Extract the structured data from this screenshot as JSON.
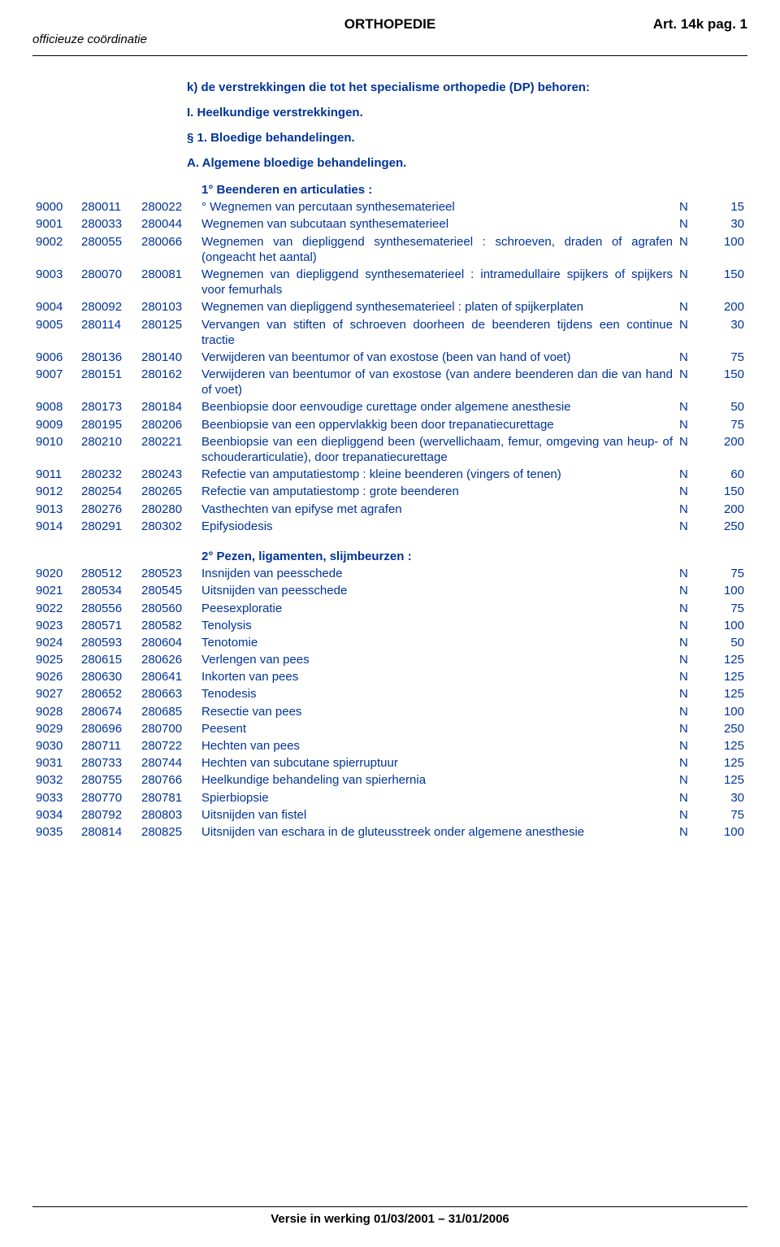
{
  "header": {
    "subtitle": "officieuze coördinatie",
    "center": "ORTHOPEDIE",
    "right": "Art. 14k pag. 1"
  },
  "intro": {
    "line1": "k) de verstrekkingen die tot het specialisme orthopedie (DP) behoren:",
    "line2": "I. Heelkundige verstrekkingen.",
    "line3": "§ 1. Bloedige behandelingen.",
    "line4": "A. Algemene bloedige behandelingen."
  },
  "sections": [
    {
      "title": "1° Beenderen en articulaties :",
      "rows": [
        {
          "c0": "9000",
          "c1": "280011",
          "c2": "280022",
          "desc": "° Wegnemen van percutaan synthesematerieel",
          "mark": "N",
          "val": "15"
        },
        {
          "c0": "9001",
          "c1": "280033",
          "c2": "280044",
          "desc": "Wegnemen van subcutaan synthesematerieel",
          "mark": "N",
          "val": "30"
        },
        {
          "c0": "9002",
          "c1": "280055",
          "c2": "280066",
          "desc": "Wegnemen van diepliggend synthesematerieel : schroeven, draden of agrafen (ongeacht het aantal)",
          "mark": "N",
          "val": "100"
        },
        {
          "c0": "9003",
          "c1": "280070",
          "c2": "280081",
          "desc": "Wegnemen van diepliggend synthesematerieel : intramedullaire spijkers of spijkers voor femurhals",
          "mark": "N",
          "val": "150"
        },
        {
          "c0": "9004",
          "c1": "280092",
          "c2": "280103",
          "desc": "Wegnemen van diepliggend synthesematerieel : platen of spijkerplaten",
          "mark": "N",
          "val": "200"
        },
        {
          "c0": "9005",
          "c1": "280114",
          "c2": "280125",
          "desc": "Vervangen van stiften of schroeven doorheen de beenderen tijdens een continue tractie",
          "mark": "N",
          "val": "30"
        },
        {
          "c0": "9006",
          "c1": "280136",
          "c2": "280140",
          "desc": "Verwijderen van beentumor of van exostose (been van hand of voet)",
          "mark": "N",
          "val": "75"
        },
        {
          "c0": "9007",
          "c1": "280151",
          "c2": "280162",
          "desc": "Verwijderen van beentumor of van exostose (van andere beenderen dan die van hand of voet)",
          "mark": "N",
          "val": "150"
        },
        {
          "c0": "9008",
          "c1": "280173",
          "c2": "280184",
          "desc": "Beenbiopsie door eenvoudige curettage onder algemene anesthesie",
          "mark": "N",
          "val": "50"
        },
        {
          "c0": "9009",
          "c1": "280195",
          "c2": "280206",
          "desc": "Beenbiopsie van een oppervlakkig been door trepanatiecurettage",
          "mark": "N",
          "val": "75"
        },
        {
          "c0": "9010",
          "c1": "280210",
          "c2": "280221",
          "desc": "Beenbiopsie van een diepliggend been (wervellichaam, femur, omgeving van heup- of schouderarticulatie), door trepanatiecurettage",
          "mark": "N",
          "val": "200"
        },
        {
          "c0": "9011",
          "c1": "280232",
          "c2": "280243",
          "desc": "Refectie van amputatiestomp : kleine beenderen (vingers of tenen)",
          "mark": "N",
          "val": "60"
        },
        {
          "c0": "9012",
          "c1": "280254",
          "c2": "280265",
          "desc": "Refectie van amputatiestomp : grote beenderen",
          "mark": "N",
          "val": "150"
        },
        {
          "c0": "9013",
          "c1": "280276",
          "c2": "280280",
          "desc": "Vasthechten van epifyse met agrafen",
          "mark": "N",
          "val": "200"
        },
        {
          "c0": "9014",
          "c1": "280291",
          "c2": "280302",
          "desc": "Epifysiodesis",
          "mark": "N",
          "val": "250"
        }
      ]
    },
    {
      "title": "2° Pezen, ligamenten, slijmbeurzen :",
      "rows": [
        {
          "c0": "9020",
          "c1": "280512",
          "c2": "280523",
          "desc": "Insnijden van peesschede",
          "mark": "N",
          "val": "75"
        },
        {
          "c0": "9021",
          "c1": "280534",
          "c2": "280545",
          "desc": "Uitsnijden van peesschede",
          "mark": "N",
          "val": "100"
        },
        {
          "c0": "9022",
          "c1": "280556",
          "c2": "280560",
          "desc": "Peesexploratie",
          "mark": "N",
          "val": "75"
        },
        {
          "c0": "9023",
          "c1": "280571",
          "c2": "280582",
          "desc": "Tenolysis",
          "mark": "N",
          "val": "100"
        },
        {
          "c0": "9024",
          "c1": "280593",
          "c2": "280604",
          "desc": "Tenotomie",
          "mark": "N",
          "val": "50"
        },
        {
          "c0": "9025",
          "c1": "280615",
          "c2": "280626",
          "desc": "Verlengen van pees",
          "mark": "N",
          "val": "125"
        },
        {
          "c0": "9026",
          "c1": "280630",
          "c2": "280641",
          "desc": "Inkorten van pees",
          "mark": "N",
          "val": "125"
        },
        {
          "c0": "9027",
          "c1": "280652",
          "c2": "280663",
          "desc": "Tenodesis",
          "mark": "N",
          "val": "125"
        },
        {
          "c0": "9028",
          "c1": "280674",
          "c2": "280685",
          "desc": "Resectie van pees",
          "mark": "N",
          "val": "100"
        },
        {
          "c0": "9029",
          "c1": "280696",
          "c2": "280700",
          "desc": "Peesent",
          "mark": "N",
          "val": "250"
        },
        {
          "c0": "9030",
          "c1": "280711",
          "c2": "280722",
          "desc": "Hechten van pees",
          "mark": "N",
          "val": "125"
        },
        {
          "c0": "9031",
          "c1": "280733",
          "c2": "280744",
          "desc": "Hechten van subcutane spierruptuur",
          "mark": "N",
          "val": "125"
        },
        {
          "c0": "9032",
          "c1": "280755",
          "c2": "280766",
          "desc": "Heelkundige behandeling van spierhernia",
          "mark": "N",
          "val": "125"
        },
        {
          "c0": "9033",
          "c1": "280770",
          "c2": "280781",
          "desc": "Spierbiopsie",
          "mark": "N",
          "val": "30"
        },
        {
          "c0": "9034",
          "c1": "280792",
          "c2": "280803",
          "desc": "Uitsnijden van fistel",
          "mark": "N",
          "val": "75"
        },
        {
          "c0": "9035",
          "c1": "280814",
          "c2": "280825",
          "desc": "Uitsnijden van eschara in de gluteusstreek onder algemene anesthesie",
          "mark": "N",
          "val": "100"
        }
      ]
    }
  ],
  "footer": "Versie in werking 01/03/2001 – 31/01/2006",
  "colors": {
    "text_primary": "#000000",
    "text_accent": "#003399",
    "background": "#ffffff",
    "rule": "#000000"
  }
}
